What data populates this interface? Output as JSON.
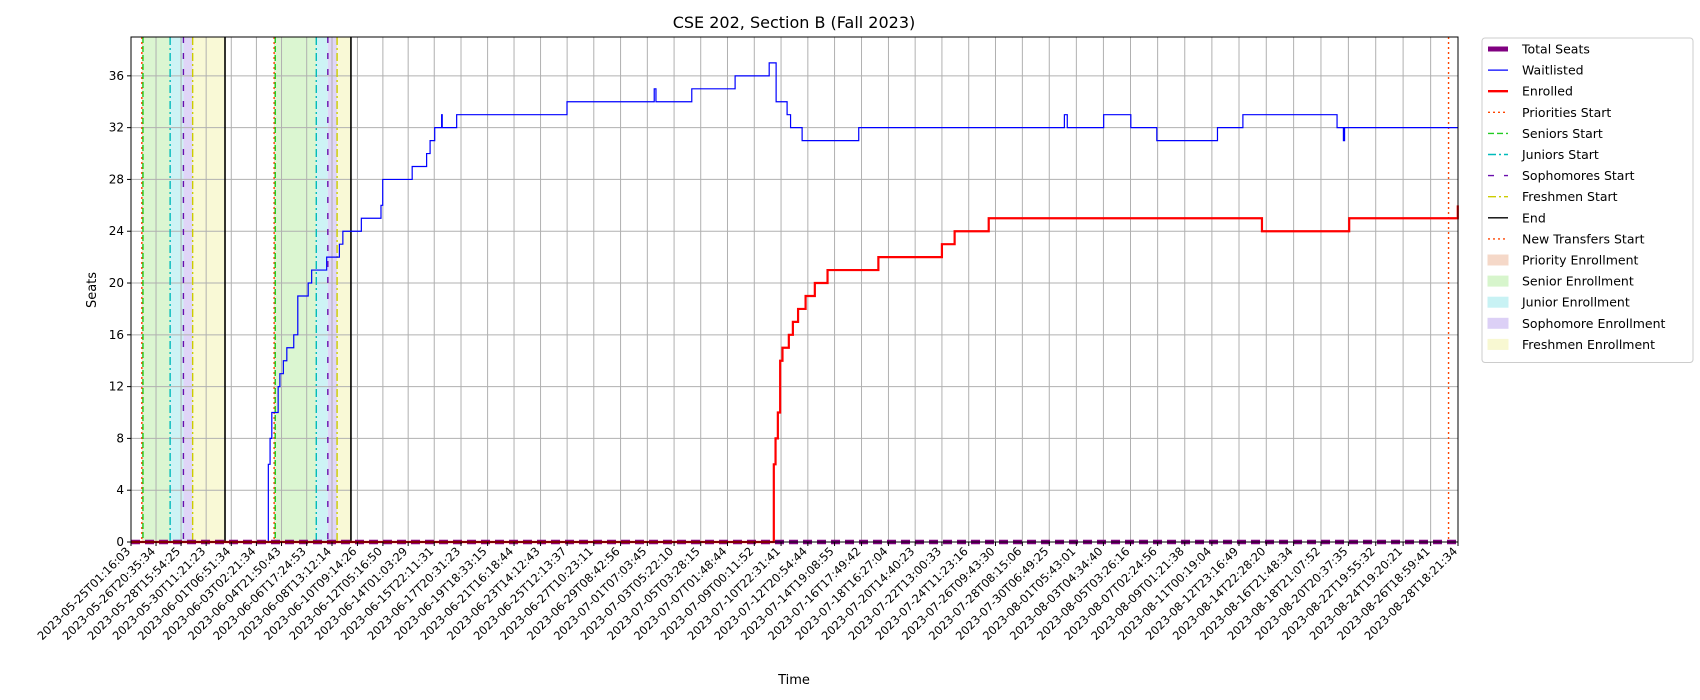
{
  "chart_data": {
    "type": "line",
    "title": "CSE 202, Section B (Fall 2023)",
    "xlabel": "Time",
    "ylabel": "Seats",
    "x_axis": "datetime",
    "xlim": [
      "2023-05-25T01:16:03",
      "2023-08-28T18:21:34"
    ],
    "ylim": [
      0,
      39
    ],
    "yticks": [
      0,
      4,
      8,
      12,
      16,
      20,
      24,
      28,
      32,
      36
    ],
    "xtick_labels": [
      "2023-05-25T01:16:03",
      "2023-05-26T20:35:34",
      "2023-05-28T15:54:25",
      "2023-05-30T11:21:23",
      "2023-06-01T06:51:34",
      "2023-06-03T02:21:34",
      "2023-06-04T21:50:43",
      "2023-06-06T17:24:53",
      "2023-06-08T13:12:14",
      "2023-06-10T09:14:26",
      "2023-06-12T05:16:50",
      "2023-06-14T01:03:29",
      "2023-06-15T22:11:31",
      "2023-06-17T20:31:23",
      "2023-06-19T18:33:15",
      "2023-06-21T16:18:44",
      "2023-06-23T14:12:43",
      "2023-06-25T12:13:37",
      "2023-06-27T10:23:11",
      "2023-06-29T08:42:56",
      "2023-07-01T07:03:45",
      "2023-07-03T05:22:10",
      "2023-07-05T03:28:15",
      "2023-07-07T01:48:44",
      "2023-07-09T00:11:52",
      "2023-07-10T22:31:41",
      "2023-07-12T20:54:44",
      "2023-07-14T19:08:55",
      "2023-07-16T17:49:42",
      "2023-07-18T16:27:04",
      "2023-07-20T14:40:23",
      "2023-07-22T13:00:33",
      "2023-07-24T11:23:16",
      "2023-07-26T09:43:30",
      "2023-07-28T08:15:06",
      "2023-07-30T06:49:25",
      "2023-08-01T05:43:01",
      "2023-08-03T04:34:40",
      "2023-08-05T03:26:16",
      "2023-08-07T02:24:56",
      "2023-08-09T01:21:38",
      "2023-08-11T00:19:04",
      "2023-08-12T23:16:49",
      "2023-08-14T22:28:20",
      "2023-08-16T21:48:34",
      "2023-08-18T21:07:52",
      "2023-08-20T20:37:35",
      "2023-08-22T19:55:32",
      "2023-08-24T19:20:21",
      "2023-08-26T18:59:41",
      "2023-08-28T18:21:34"
    ],
    "grid": true,
    "legend_position": "outside-right-top",
    "series": [
      {
        "name": "Total Seats",
        "color": "#800080",
        "style": "dashed-thick",
        "points": [
          [
            "2023-05-25T01:16:03",
            0
          ],
          [
            "2023-08-28T18:21:34",
            0
          ]
        ]
      },
      {
        "name": "Waitlisted",
        "color": "#0000ff",
        "style": "solid-thin",
        "step": true,
        "points": [
          [
            "2023-05-25T01:16:03",
            0
          ],
          [
            "2023-06-03T22:00:00",
            0
          ],
          [
            "2023-06-03T23:00:00",
            6
          ],
          [
            "2023-06-04T02:00:00",
            8
          ],
          [
            "2023-06-04T05:00:00",
            10
          ],
          [
            "2023-06-04T16:00:00",
            12
          ],
          [
            "2023-06-04T19:00:00",
            13
          ],
          [
            "2023-06-05T01:00:00",
            14
          ],
          [
            "2023-06-05T07:00:00",
            15
          ],
          [
            "2023-06-05T19:00:00",
            16
          ],
          [
            "2023-06-06T02:00:00",
            19
          ],
          [
            "2023-06-06T20:00:00",
            20
          ],
          [
            "2023-06-07T02:00:00",
            21
          ],
          [
            "2023-06-08T04:00:00",
            22
          ],
          [
            "2023-06-09T02:00:00",
            23
          ],
          [
            "2023-06-09T08:00:00",
            24
          ],
          [
            "2023-06-10T16:00:00",
            25
          ],
          [
            "2023-06-12T02:00:00",
            26
          ],
          [
            "2023-06-12T05:00:00",
            28
          ],
          [
            "2023-06-14T08:00:00",
            29
          ],
          [
            "2023-06-15T09:00:00",
            30
          ],
          [
            "2023-06-15T15:00:00",
            31
          ],
          [
            "2023-06-15T23:00:00",
            32
          ],
          [
            "2023-06-16T11:00:00",
            33
          ],
          [
            "2023-06-16T12:00:00",
            32
          ],
          [
            "2023-06-17T13:00:00",
            33
          ],
          [
            "2023-06-25T12:00:00",
            34
          ],
          [
            "2023-07-01T19:00:00",
            35
          ],
          [
            "2023-07-01T22:00:00",
            34
          ],
          [
            "2023-07-04T12:00:00",
            35
          ],
          [
            "2023-07-07T15:00:00",
            36
          ],
          [
            "2023-07-10T02:00:00",
            37
          ],
          [
            "2023-07-10T14:00:00",
            34
          ],
          [
            "2023-07-11T09:00:00",
            33
          ],
          [
            "2023-07-11T15:00:00",
            32
          ],
          [
            "2023-07-12T11:00:00",
            31
          ],
          [
            "2023-07-16T13:00:00",
            32
          ],
          [
            "2023-07-31T09:00:00",
            33
          ],
          [
            "2023-07-31T14:00:00",
            32
          ],
          [
            "2023-08-03T05:00:00",
            33
          ],
          [
            "2023-08-05T04:00:00",
            32
          ],
          [
            "2023-08-07T01:00:00",
            31
          ],
          [
            "2023-08-11T10:00:00",
            32
          ],
          [
            "2023-08-13T06:00:00",
            33
          ],
          [
            "2023-08-20T01:00:00",
            32
          ],
          [
            "2023-08-20T12:00:00",
            31
          ],
          [
            "2023-08-20T14:00:00",
            32
          ],
          [
            "2023-08-28T18:21:34",
            32
          ]
        ]
      },
      {
        "name": "Enrolled",
        "color": "#ff0000",
        "style": "solid-thick",
        "step": true,
        "points": [
          [
            "2023-05-25T01:16:03",
            0
          ],
          [
            "2023-07-10T09:00:00",
            0
          ],
          [
            "2023-07-10T10:00:00",
            6
          ],
          [
            "2023-07-10T13:00:00",
            8
          ],
          [
            "2023-07-10T17:00:00",
            10
          ],
          [
            "2023-07-10T21:00:00",
            14
          ],
          [
            "2023-07-11T01:00:00",
            15
          ],
          [
            "2023-07-11T12:00:00",
            16
          ],
          [
            "2023-07-11T19:00:00",
            17
          ],
          [
            "2023-07-12T04:00:00",
            18
          ],
          [
            "2023-07-12T17:00:00",
            19
          ],
          [
            "2023-07-13T09:00:00",
            20
          ],
          [
            "2023-07-14T07:00:00",
            21
          ],
          [
            "2023-07-17T23:00:00",
            22
          ],
          [
            "2023-07-22T13:00:00",
            23
          ],
          [
            "2023-07-23T11:00:00",
            24
          ],
          [
            "2023-07-25T22:00:00",
            25
          ],
          [
            "2023-08-14T15:00:00",
            24
          ],
          [
            "2023-08-20T22:00:00",
            25
          ],
          [
            "2023-08-28T18:00:00",
            26
          ]
        ]
      }
    ],
    "markers": [
      {
        "name": "Priorities Start",
        "color": "#ff4500",
        "style": "dotted",
        "dates": [
          "2023-05-25T20:00:00",
          "2023-06-04T09:00:00",
          "2023-08-28T02:00:00"
        ]
      },
      {
        "name": "Seniors Start",
        "color": "#22cc22",
        "style": "dashed",
        "dates": [
          "2023-05-25T22:00:00",
          "2023-06-04T11:00:00"
        ]
      },
      {
        "name": "Juniors Start",
        "color": "#00bbbb",
        "style": "dashdot",
        "dates": [
          "2023-05-27T21:00:00",
          "2023-06-07T10:00:00"
        ]
      },
      {
        "name": "Sophomores Start",
        "color": "#6a0dad",
        "style": "sparse-dashed",
        "dates": [
          "2023-05-28T20:00:00",
          "2023-06-08T06:00:00"
        ]
      },
      {
        "name": "Freshmen Start",
        "color": "#cccc00",
        "style": "dashdot",
        "dates": [
          "2023-05-29T12:00:00",
          "2023-06-08T22:00:00"
        ]
      },
      {
        "name": "End",
        "color": "#000000",
        "style": "solid",
        "dates": [
          "2023-05-31T20:00:00",
          "2023-06-09T22:00:00"
        ]
      },
      {
        "name": "New Transfers Start",
        "color": "#ff4500",
        "style": "dotted",
        "dates": []
      }
    ],
    "spans": [
      {
        "name": "Priority Enrollment",
        "color": "#f5d8c8",
        "ranges": [
          [
            "2023-05-25T20:00:00",
            "2023-05-25T22:00:00"
          ],
          [
            "2023-06-04T09:00:00",
            "2023-06-04T11:00:00"
          ]
        ]
      },
      {
        "name": "Senior Enrollment",
        "color": "#d7f5cc",
        "ranges": [
          [
            "2023-05-25T22:00:00",
            "2023-05-27T21:00:00"
          ],
          [
            "2023-06-04T11:00:00",
            "2023-06-07T10:00:00"
          ]
        ]
      },
      {
        "name": "Junior Enrollment",
        "color": "#c8f2f4",
        "ranges": [
          [
            "2023-05-27T21:00:00",
            "2023-05-28T20:00:00"
          ],
          [
            "2023-06-07T10:00:00",
            "2023-06-08T06:00:00"
          ]
        ]
      },
      {
        "name": "Sophomore Enrollment",
        "color": "#dcd0f6",
        "ranges": [
          [
            "2023-05-28T20:00:00",
            "2023-05-29T12:00:00"
          ],
          [
            "2023-06-08T06:00:00",
            "2023-06-08T22:00:00"
          ]
        ]
      },
      {
        "name": "Freshmen Enrollment",
        "color": "#f8f8d2",
        "ranges": [
          [
            "2023-05-29T12:00:00",
            "2023-05-31T20:00:00"
          ],
          [
            "2023-06-08T22:00:00",
            "2023-06-09T22:00:00"
          ]
        ]
      }
    ]
  }
}
